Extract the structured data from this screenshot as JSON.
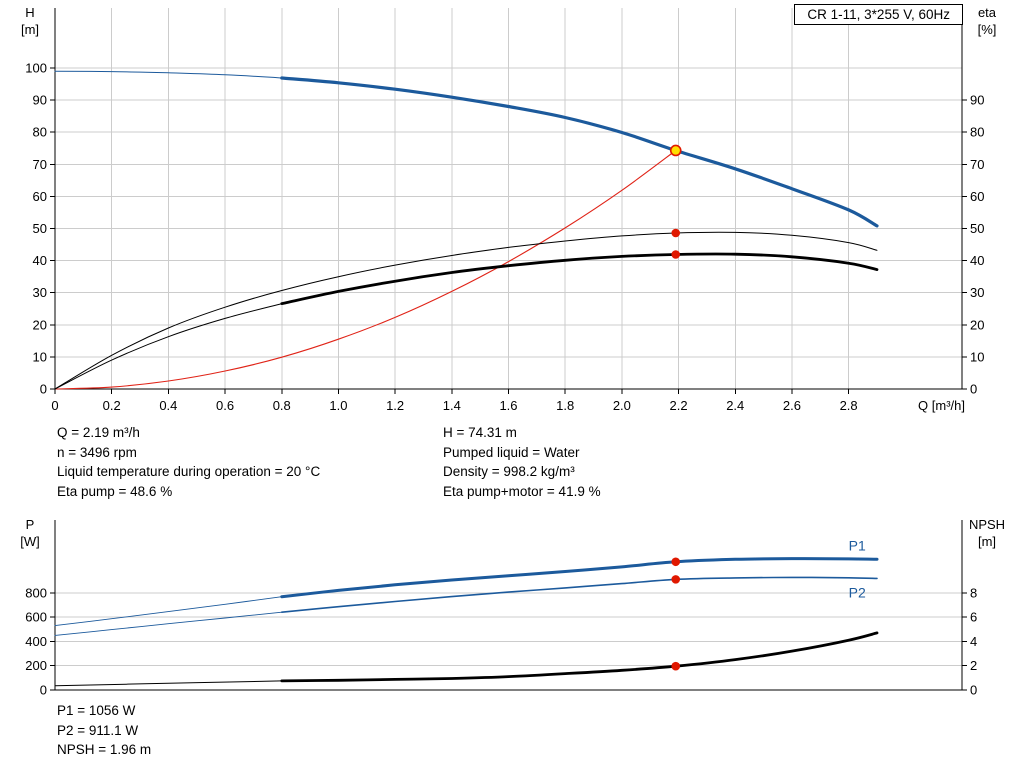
{
  "title_box": "CR 1-11, 3*255 V, 60Hz",
  "colors": {
    "curve_blue": "#1c5a9c",
    "curve_red": "#e02317",
    "curve_black": "#000000",
    "duty_yellow": "#ffdf00",
    "duty_red": "#e01800",
    "grid": "#cccccc",
    "axis": "#000000"
  },
  "axis_corner_labels": {
    "upper_left": [
      "H",
      "[m]"
    ],
    "upper_right": [
      "eta",
      "[%]"
    ],
    "lower_left": [
      "P",
      "[W]"
    ],
    "lower_right": [
      "NPSH",
      "[m]"
    ]
  },
  "annotations": {
    "upper_left": [
      "Q = 2.19 m³/h",
      "n = 3496 rpm",
      "Liquid temperature during operation = 20 °C",
      "Eta pump = 48.6 %"
    ],
    "upper_right": [
      "H = 74.31 m",
      "Pumped liquid = Water",
      "Density = 998.2 kg/m³",
      "Eta pump+motor = 41.9 %"
    ],
    "lower": [
      "P1 = 1056 W",
      "P2 = 911.1 W",
      "NPSH = 1.96 m"
    ]
  },
  "chart_data": [
    {
      "type": "line",
      "name": "qh-eta-chart",
      "x": {
        "label": "Q [m³/h]",
        "min": 0,
        "max": 3.2,
        "ticks": [
          0,
          0.2,
          0.4,
          0.6,
          0.8,
          1.0,
          1.2,
          1.4,
          1.6,
          1.8,
          2.0,
          2.2,
          2.4,
          2.6,
          2.8
        ],
        "tick_labels": [
          "0",
          "0.2",
          "0.4",
          "0.6",
          "0.8",
          "1.0",
          "1.2",
          "1.4",
          "1.6",
          "1.8",
          "2.0",
          "2.2",
          "2.4",
          "2.6",
          "2.8"
        ]
      },
      "left_axis": {
        "label": "H [m]",
        "min": 0,
        "max": 118.7,
        "ticks": [
          0,
          10,
          20,
          30,
          40,
          50,
          60,
          70,
          80,
          90,
          100
        ]
      },
      "right_axis": {
        "label": "eta [%]",
        "min": 0,
        "max": 118.7,
        "ticks": [
          0,
          10,
          20,
          30,
          40,
          50,
          60,
          70,
          80,
          90
        ]
      },
      "grid": {
        "vertical_at": [
          0.2,
          0.4,
          0.6,
          0.8,
          1.0,
          1.2,
          1.4,
          1.6,
          1.8,
          2.0,
          2.2,
          2.4,
          2.6,
          2.8
        ],
        "horizontal_at": [
          10,
          20,
          30,
          40,
          50,
          60,
          70,
          80,
          90,
          100
        ]
      },
      "series": [
        {
          "name": "system-curve",
          "axis": "left",
          "color": "#e02317",
          "width": 1.1,
          "points": [
            [
              0,
              0
            ],
            [
              0.2,
              0.6
            ],
            [
              0.4,
              2.5
            ],
            [
              0.6,
              5.6
            ],
            [
              0.8,
              9.9
            ],
            [
              1.0,
              15.5
            ],
            [
              1.2,
              22.3
            ],
            [
              1.4,
              30.4
            ],
            [
              1.6,
              39.7
            ],
            [
              1.8,
              50.2
            ],
            [
              2.0,
              61.9
            ],
            [
              2.19,
              74.31
            ]
          ]
        },
        {
          "name": "eta-pump-curve",
          "axis": "right",
          "color": "#000000",
          "width": 1,
          "points": [
            [
              0,
              0
            ],
            [
              0.2,
              10.5
            ],
            [
              0.4,
              19
            ],
            [
              0.6,
              25.5
            ],
            [
              0.8,
              30.7
            ],
            [
              1.0,
              35
            ],
            [
              1.2,
              38.6
            ],
            [
              1.4,
              41.6
            ],
            [
              1.6,
              44.1
            ],
            [
              1.8,
              46.1
            ],
            [
              2.0,
              47.7
            ],
            [
              2.19,
              48.6
            ],
            [
              2.4,
              48.8
            ],
            [
              2.6,
              47.9
            ],
            [
              2.8,
              45.6
            ],
            [
              2.9,
              43.2
            ]
          ]
        },
        {
          "name": "eta-pump-motor-curve-lead",
          "axis": "right",
          "color": "#000000",
          "width": 1,
          "points": [
            [
              0,
              0
            ],
            [
              0.2,
              9
            ],
            [
              0.4,
              16.3
            ],
            [
              0.6,
              22
            ],
            [
              0.8,
              26.6
            ]
          ]
        },
        {
          "name": "eta-pump-motor-curve",
          "axis": "right",
          "color": "#000000",
          "width": 2.8,
          "points": [
            [
              0.8,
              26.6
            ],
            [
              1.0,
              30.4
            ],
            [
              1.2,
              33.6
            ],
            [
              1.4,
              36.3
            ],
            [
              1.6,
              38.4
            ],
            [
              1.8,
              40.1
            ],
            [
              2.0,
              41.3
            ],
            [
              2.19,
              41.9
            ],
            [
              2.4,
              42.0
            ],
            [
              2.6,
              41.2
            ],
            [
              2.8,
              39.2
            ],
            [
              2.9,
              37.2
            ]
          ]
        },
        {
          "name": "qh-curve-lead",
          "axis": "left",
          "color": "#1c5a9c",
          "width": 1,
          "points": [
            [
              0,
              99
            ],
            [
              0.2,
              98.9
            ],
            [
              0.4,
              98.5
            ],
            [
              0.6,
              97.9
            ],
            [
              0.8,
              96.9
            ]
          ]
        },
        {
          "name": "qh-curve",
          "axis": "left",
          "color": "#1c5a9c",
          "width": 3.2,
          "points": [
            [
              0.8,
              96.9
            ],
            [
              1.0,
              95.4
            ],
            [
              1.2,
              93.4
            ],
            [
              1.4,
              90.9
            ],
            [
              1.6,
              88.0
            ],
            [
              1.8,
              84.6
            ],
            [
              2.0,
              79.9
            ],
            [
              2.19,
              74.31
            ],
            [
              2.4,
              68.6
            ],
            [
              2.6,
              62.4
            ],
            [
              2.8,
              55.8
            ],
            [
              2.9,
              50.8
            ]
          ]
        }
      ],
      "markers": [
        {
          "name": "duty-point-marker",
          "x": 2.19,
          "y": 74.31,
          "axis": "left",
          "fill": "#ffdf00",
          "stroke": "#e01800",
          "r": 5
        },
        {
          "name": "eta-pump-duty-marker",
          "x": 2.19,
          "y": 48.6,
          "axis": "right",
          "fill": "#e01800",
          "r": 4.3
        },
        {
          "name": "eta-pump-motor-duty-marker",
          "x": 2.19,
          "y": 41.9,
          "axis": "right",
          "fill": "#e01800",
          "r": 4.3
        }
      ]
    },
    {
      "type": "line",
      "name": "power-npsh-chart",
      "x": {
        "min": 0,
        "max": 3.2
      },
      "left_axis": {
        "label": "P [W]",
        "min": 0,
        "max": 1400,
        "ticks": [
          0,
          200,
          400,
          600,
          800
        ]
      },
      "right_axis": {
        "label": "NPSH [m]",
        "min": 0,
        "max": 14,
        "ticks": [
          0,
          2,
          4,
          6,
          8
        ]
      },
      "grid": {
        "vertical_at": [],
        "horizontal_at": [
          200,
          400,
          600,
          800
        ]
      },
      "series": [
        {
          "name": "p1-curve-lead",
          "axis": "left",
          "color": "#1c5a9c",
          "width": 0.9,
          "points": [
            [
              0,
              530
            ],
            [
              0.2,
              587
            ],
            [
              0.4,
              646
            ],
            [
              0.6,
              706
            ],
            [
              0.8,
              768
            ]
          ]
        },
        {
          "name": "p1-curve",
          "axis": "left",
          "color": "#1c5a9c",
          "width": 3,
          "label": "P1",
          "label_at": [
            2.8,
            1150
          ],
          "points": [
            [
              0.8,
              768
            ],
            [
              1.0,
              820
            ],
            [
              1.2,
              866
            ],
            [
              1.4,
              906
            ],
            [
              1.6,
              941
            ],
            [
              1.8,
              976
            ],
            [
              2.0,
              1014
            ],
            [
              2.19,
              1056
            ],
            [
              2.4,
              1076
            ],
            [
              2.6,
              1082
            ],
            [
              2.8,
              1080
            ],
            [
              2.9,
              1076
            ]
          ]
        },
        {
          "name": "p2-curve-lead",
          "axis": "left",
          "color": "#1c5a9c",
          "width": 0.9,
          "points": [
            [
              0,
              450
            ],
            [
              0.2,
              497
            ],
            [
              0.4,
              546
            ],
            [
              0.6,
              593
            ],
            [
              0.8,
              641
            ]
          ]
        },
        {
          "name": "p2-curve",
          "axis": "left",
          "color": "#1c5a9c",
          "width": 1.6,
          "label": "P2",
          "label_at": [
            2.8,
            760
          ],
          "points": [
            [
              0.8,
              641
            ],
            [
              1.0,
              686
            ],
            [
              1.2,
              729
            ],
            [
              1.4,
              769
            ],
            [
              1.6,
              806
            ],
            [
              1.8,
              841
            ],
            [
              2.0,
              876
            ],
            [
              2.19,
              911
            ],
            [
              2.4,
              923
            ],
            [
              2.6,
              927
            ],
            [
              2.8,
              924
            ],
            [
              2.9,
              919
            ]
          ]
        },
        {
          "name": "npsh-curve-lead",
          "axis": "right",
          "color": "#000000",
          "width": 1,
          "points": [
            [
              0,
              0.35
            ],
            [
              0.4,
              0.55
            ],
            [
              0.8,
              0.75
            ]
          ]
        },
        {
          "name": "npsh-curve",
          "axis": "right",
          "color": "#000000",
          "width": 2.8,
          "points": [
            [
              0.8,
              0.75
            ],
            [
              1.0,
              0.8
            ],
            [
              1.2,
              0.87
            ],
            [
              1.4,
              0.95
            ],
            [
              1.6,
              1.1
            ],
            [
              1.8,
              1.35
            ],
            [
              2.0,
              1.62
            ],
            [
              2.19,
              1.96
            ],
            [
              2.4,
              2.5
            ],
            [
              2.6,
              3.2
            ],
            [
              2.8,
              4.1
            ],
            [
              2.9,
              4.7
            ]
          ]
        }
      ],
      "markers": [
        {
          "name": "p1-duty-marker",
          "x": 2.19,
          "y": 1056,
          "axis": "left",
          "fill": "#e01800",
          "r": 4.3
        },
        {
          "name": "p2-duty-marker",
          "x": 2.19,
          "y": 911,
          "axis": "left",
          "fill": "#e01800",
          "r": 4.3
        },
        {
          "name": "npsh-duty-marker",
          "x": 2.19,
          "y": 1.96,
          "axis": "right",
          "fill": "#e01800",
          "r": 4.3
        }
      ]
    }
  ]
}
